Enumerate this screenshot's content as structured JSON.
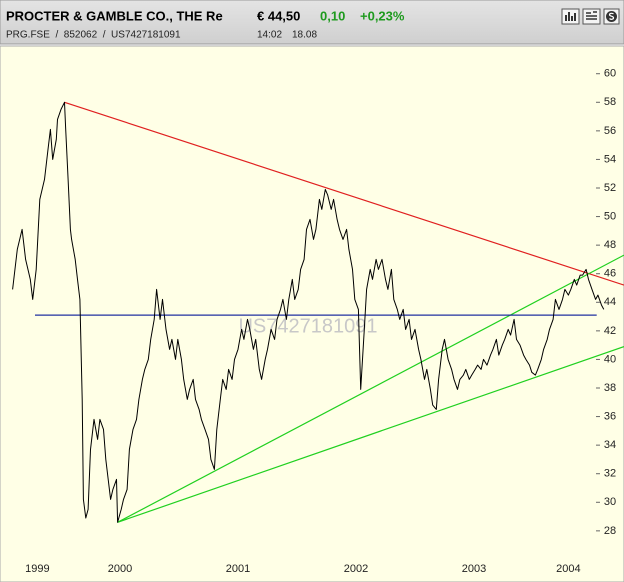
{
  "header": {
    "title": "PROCTER & GAMBLE CO., THE Re",
    "price": "€ 44,50",
    "change": "0,10",
    "change_pct": "+0,23%",
    "ids": "PRG.FSE  /  852062  /  US7427181091",
    "time": "14:02",
    "date": "18.08"
  },
  "chart_data": {
    "type": "line",
    "watermark": "US7427181091",
    "xlim": [
      1999.483,
      2004.771
    ],
    "ylim": [
      26.1,
      61.8
    ],
    "xticks": [
      {
        "value": 1999.8,
        "label": "1999"
      },
      {
        "value": 2000.5,
        "label": "2000"
      },
      {
        "value": 2001.5,
        "label": "2001"
      },
      {
        "value": 2002.5,
        "label": "2002"
      },
      {
        "value": 2003.5,
        "label": "2003"
      },
      {
        "value": 2004.3,
        "label": "2004"
      }
    ],
    "yticks": [
      28,
      30,
      32,
      34,
      36,
      38,
      40,
      42,
      44,
      46,
      48,
      50,
      52,
      54,
      56,
      58,
      60
    ],
    "x": [
      1999.59,
      1999.63,
      1999.67,
      1999.7,
      1999.74,
      1999.76,
      1999.79,
      1999.82,
      1999.86,
      1999.89,
      1999.91,
      1999.93,
      1999.96,
      1999.97,
      2000.0,
      2000.03,
      2000.04,
      2000.06,
      2000.08,
      2000.09,
      2000.12,
      2000.14,
      2000.16,
      2000.18,
      2000.19,
      2000.21,
      2000.23,
      2000.25,
      2000.28,
      2000.31,
      2000.33,
      2000.36,
      2000.38,
      2000.42,
      2000.44,
      2000.47,
      2000.48,
      2000.51,
      2000.53,
      2000.56,
      2000.58,
      2000.61,
      2000.64,
      2000.66,
      2000.69,
      2000.71,
      2000.74,
      2000.76,
      2000.79,
      2000.81,
      2000.84,
      2000.86,
      2000.89,
      2000.92,
      2000.94,
      2000.97,
      2000.99,
      2001.02,
      2001.04,
      2001.07,
      2001.09,
      2001.12,
      2001.14,
      2001.17,
      2001.19,
      2001.22,
      2001.25,
      2001.27,
      2001.3,
      2001.32,
      2001.35,
      2001.37,
      2001.4,
      2001.42,
      2001.45,
      2001.47,
      2001.5,
      2001.53,
      2001.55,
      2001.58,
      2001.6,
      2001.63,
      2001.65,
      2001.68,
      2001.7,
      2001.73,
      2001.75,
      2001.78,
      2001.81,
      2001.83,
      2001.86,
      2001.88,
      2001.91,
      2001.93,
      2001.96,
      2001.98,
      2002.01,
      2002.03,
      2002.06,
      2002.08,
      2002.11,
      2002.14,
      2002.16,
      2002.19,
      2002.21,
      2002.24,
      2002.26,
      2002.29,
      2002.31,
      2002.34,
      2002.36,
      2002.39,
      2002.42,
      2002.44,
      2002.47,
      2002.49,
      2002.52,
      2002.54,
      2002.57,
      2002.59,
      2002.62,
      2002.64,
      2002.67,
      2002.69,
      2002.72,
      2002.75,
      2002.77,
      2002.8,
      2002.82,
      2002.85,
      2002.87,
      2002.9,
      2002.92,
      2002.95,
      2002.97,
      2003.0,
      2003.03,
      2003.05,
      2003.08,
      2003.1,
      2003.13,
      2003.15,
      2003.18,
      2003.2,
      2003.23,
      2003.25,
      2003.28,
      2003.31,
      2003.33,
      2003.36,
      2003.38,
      2003.41,
      2003.43,
      2003.46,
      2003.48,
      2003.51,
      2003.53,
      2003.56,
      2003.58,
      2003.61,
      2003.64,
      2003.66,
      2003.69,
      2003.71,
      2003.74,
      2003.76,
      2003.79,
      2003.81,
      2003.84,
      2003.86,
      2003.89,
      2003.92,
      2003.94,
      2003.97,
      2003.99,
      2004.02,
      2004.04,
      2004.07,
      2004.09,
      2004.12,
      2004.14,
      2004.17,
      2004.19,
      2004.22,
      2004.25,
      2004.27,
      2004.3,
      2004.32,
      2004.35,
      2004.37,
      2004.4,
      2004.42,
      2004.45,
      2004.47,
      2004.5,
      2004.53,
      2004.55,
      2004.58,
      2004.6
    ],
    "series": [
      {
        "color": "#000000",
        "values": [
          44.9,
          47.7,
          49.1,
          47.0,
          45.6,
          44.2,
          46.3,
          51.2,
          52.6,
          54.7,
          56.1,
          54.0,
          55.4,
          56.8,
          57.5,
          58.0,
          56.1,
          52.6,
          49.1,
          48.4,
          47.0,
          45.6,
          44.2,
          37.2,
          30.2,
          28.9,
          29.5,
          33.7,
          35.8,
          34.4,
          35.8,
          35.1,
          33.0,
          30.2,
          30.9,
          31.6,
          28.6,
          29.5,
          30.2,
          30.9,
          33.7,
          35.1,
          35.8,
          37.2,
          38.6,
          39.3,
          40.0,
          41.4,
          42.8,
          44.9,
          42.8,
          44.2,
          42.1,
          40.7,
          41.4,
          40.0,
          41.4,
          40.0,
          38.6,
          37.2,
          37.9,
          38.6,
          37.2,
          36.5,
          35.8,
          35.1,
          34.4,
          33.0,
          32.3,
          35.1,
          37.2,
          38.6,
          37.9,
          39.3,
          38.6,
          40.0,
          40.7,
          42.1,
          41.4,
          42.8,
          42.1,
          40.7,
          41.4,
          39.3,
          38.6,
          40.0,
          40.7,
          42.1,
          41.4,
          42.8,
          43.5,
          44.2,
          42.8,
          44.2,
          45.6,
          44.2,
          44.9,
          46.3,
          47.0,
          49.1,
          49.8,
          48.4,
          49.1,
          51.2,
          50.5,
          51.9,
          51.5,
          50.5,
          51.2,
          49.8,
          49.1,
          48.4,
          49.1,
          47.7,
          46.3,
          44.2,
          43.5,
          37.9,
          42.1,
          44.9,
          46.3,
          45.6,
          47.0,
          46.3,
          47.0,
          45.6,
          44.9,
          46.3,
          44.2,
          43.5,
          42.8,
          43.5,
          42.1,
          42.8,
          41.4,
          42.1,
          40.7,
          40.0,
          38.6,
          39.3,
          37.9,
          36.8,
          36.5,
          38.6,
          40.7,
          41.4,
          40.0,
          39.3,
          38.6,
          37.9,
          38.6,
          38.9,
          39.3,
          38.6,
          38.9,
          39.3,
          39.6,
          39.3,
          40.0,
          39.6,
          40.3,
          40.7,
          41.4,
          40.3,
          41.0,
          41.4,
          42.1,
          41.7,
          42.8,
          41.4,
          41.0,
          40.3,
          40.0,
          39.6,
          39.1,
          38.9,
          39.3,
          40.0,
          40.7,
          41.4,
          42.1,
          42.8,
          44.2,
          43.5,
          44.2,
          44.9,
          44.5,
          44.9,
          45.6,
          45.2,
          45.9,
          45.9,
          46.3,
          45.6,
          44.9,
          44.2,
          44.5,
          43.8,
          43.5
        ]
      }
    ],
    "trendlines": [
      {
        "color": "#e02020",
        "x": [
          2000.03,
          2004.771
        ],
        "values": [
          58.0,
          45.2
        ]
      },
      {
        "color": "#20d020",
        "x": [
          2000.48,
          2004.771
        ],
        "values": [
          28.6,
          47.3
        ]
      },
      {
        "color": "#20d020",
        "x": [
          2000.48,
          2004.771
        ],
        "values": [
          28.6,
          40.9
        ]
      },
      {
        "color": "#2030a0",
        "x": [
          1999.78,
          2004.54
        ],
        "values": [
          43.1,
          43.1
        ]
      }
    ]
  }
}
